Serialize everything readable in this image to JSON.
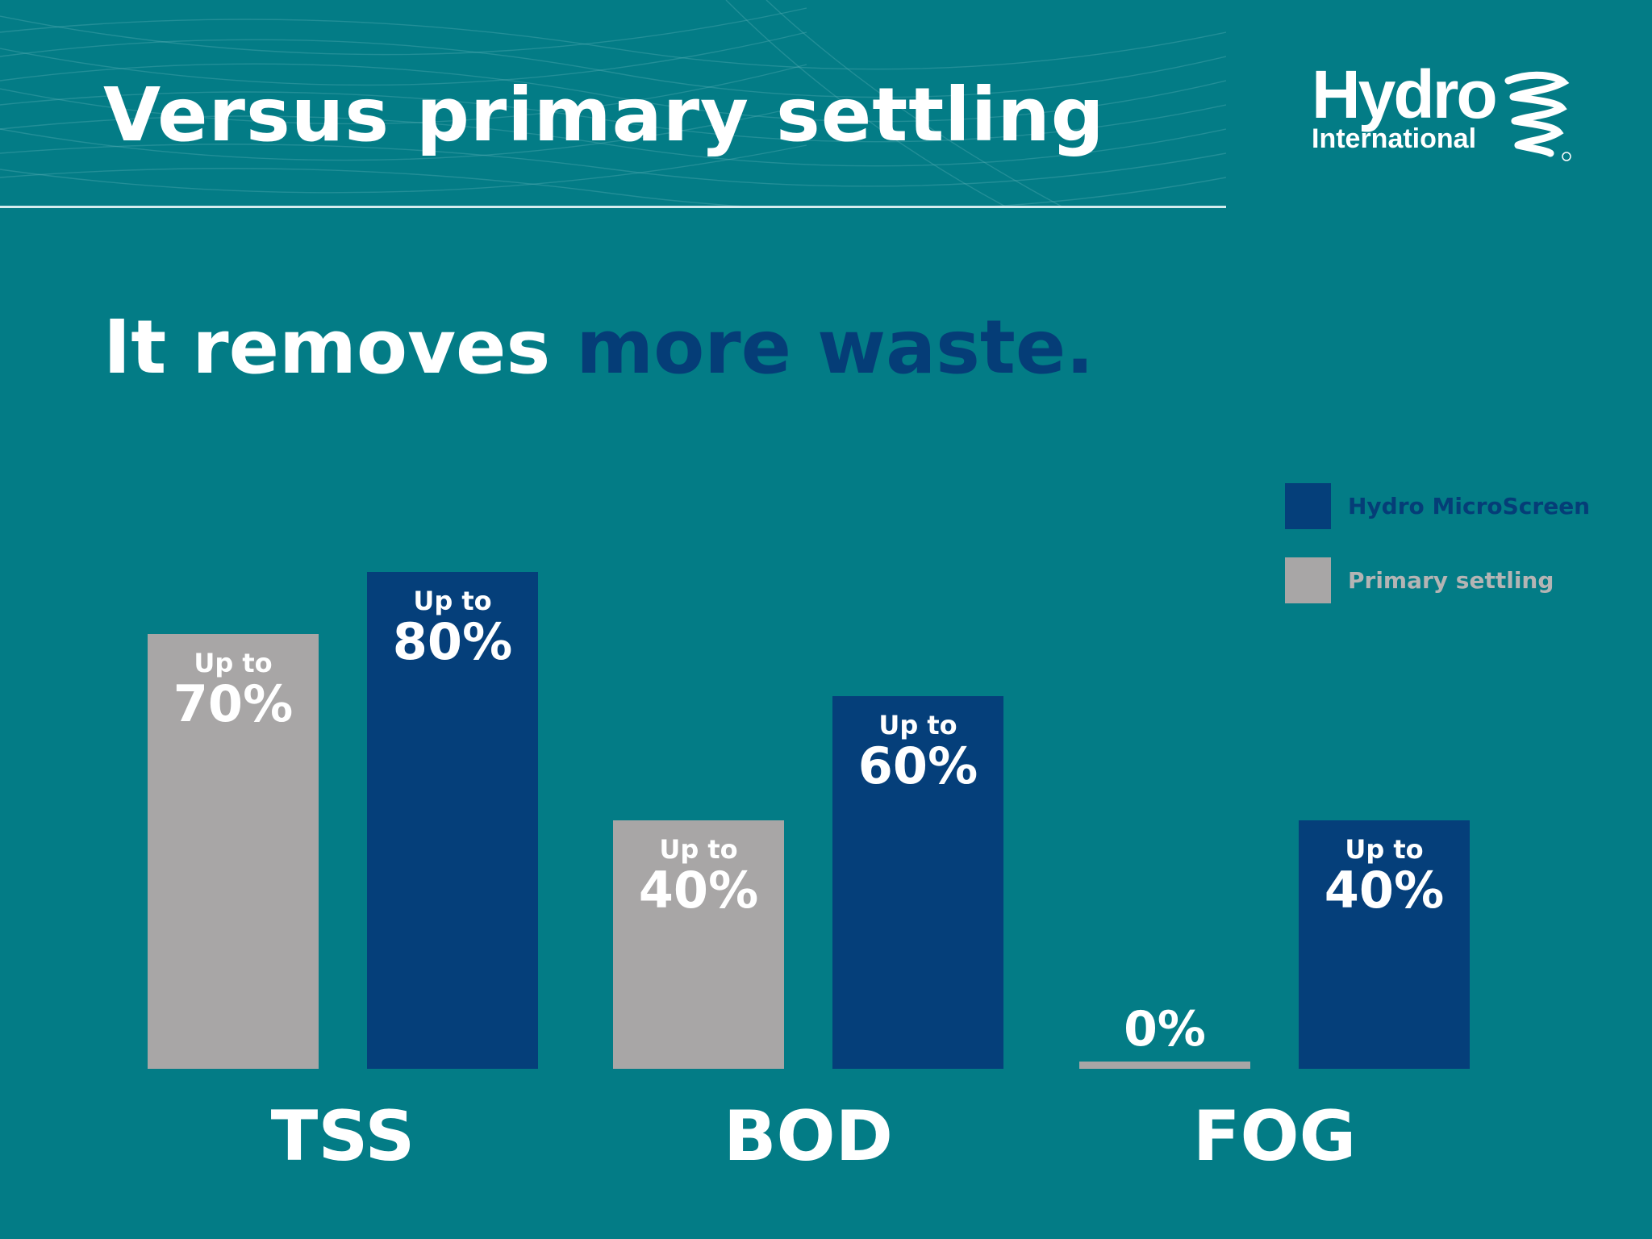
{
  "slide": {
    "title": "Versus primary settling",
    "subtitle_lead": "It removes ",
    "subtitle_accent": "more waste.",
    "logo": {
      "word": "Hydro",
      "sub": "International"
    }
  },
  "colors": {
    "background": "#037c86",
    "microscreen": "#053f7a",
    "primary_settling": "#a8a6a6",
    "accent_text": "#053d77",
    "legend_microscreen_text": "#053d77",
    "legend_primary_text": "#b4b4b4"
  },
  "chart_data": {
    "type": "bar",
    "categories": [
      "TSS",
      "BOD",
      "FOG"
    ],
    "series": [
      {
        "name": "Primary settling",
        "values": [
          70,
          40,
          0
        ],
        "labels": [
          [
            "Up to",
            "70%"
          ],
          [
            "Up to",
            "40%"
          ],
          [
            "",
            "0%"
          ]
        ]
      },
      {
        "name": "Hydro MicroScreen",
        "values": [
          80,
          60,
          40
        ],
        "labels": [
          [
            "Up to",
            "80%"
          ],
          [
            "Up to",
            "60%"
          ],
          [
            "Up to",
            "40%"
          ]
        ]
      }
    ],
    "legend": {
      "position": "top-right",
      "order": [
        "Hydro MicroScreen",
        "Primary settling"
      ]
    },
    "ylim": [
      0,
      100
    ],
    "grid": false,
    "unit": "%"
  }
}
